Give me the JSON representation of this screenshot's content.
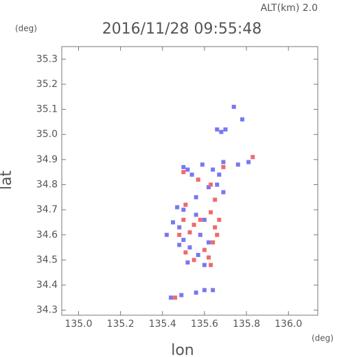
{
  "chart_data": {
    "type": "scatter",
    "annotation": "ALT(km) 2.0",
    "title": "2016/11/28 09:55:48",
    "y_unit": "(deg)",
    "x_unit": "(deg)",
    "x_label": "lon",
    "y_label": "lat",
    "xlim": [
      134.92,
      136.14
    ],
    "ylim": [
      34.28,
      35.35
    ],
    "xticks": [
      {
        "value": 135.0,
        "label": "135.0"
      },
      135.2,
      135.4,
      135.6,
      135.8,
      {
        "value": 136.0,
        "label": "136.0"
      }
    ],
    "yticks": [
      34.3,
      34.4,
      34.5,
      34.6,
      34.7,
      34.8,
      34.9,
      {
        "value": 35.0,
        "label": "35.0"
      },
      35.1,
      35.2,
      35.3
    ],
    "series": [
      {
        "color": "#7878f0",
        "x": [
          135.74,
          135.78,
          135.66,
          135.68,
          135.7,
          135.5,
          135.52,
          135.54,
          135.59,
          135.64,
          135.69,
          135.76,
          135.81,
          135.62,
          135.66,
          135.69,
          135.47,
          135.5,
          135.56,
          135.6,
          135.45,
          135.48,
          135.42,
          135.5,
          135.58,
          135.62,
          135.53,
          135.57,
          135.6,
          135.52,
          135.48,
          135.44,
          135.49,
          135.56,
          135.6,
          135.64,
          135.56,
          135.67
        ],
        "y": [
          35.11,
          35.06,
          35.02,
          35.01,
          35.02,
          34.87,
          34.86,
          34.84,
          34.88,
          34.86,
          34.89,
          34.88,
          34.89,
          34.79,
          34.8,
          34.77,
          34.71,
          34.7,
          34.68,
          34.66,
          34.65,
          34.63,
          34.6,
          34.58,
          34.6,
          34.57,
          34.55,
          34.52,
          34.48,
          34.49,
          34.56,
          34.35,
          34.36,
          34.37,
          34.38,
          34.38,
          34.75,
          34.84
        ]
      },
      {
        "color": "#f06a6a",
        "x": [
          135.83,
          135.5,
          135.57,
          135.63,
          135.65,
          135.51,
          135.55,
          135.63,
          135.65,
          135.66,
          135.64,
          135.6,
          135.62,
          135.63,
          135.55,
          135.51,
          135.48,
          135.53,
          135.58,
          135.5,
          135.67,
          135.46,
          135.69
        ],
        "y": [
          34.91,
          34.85,
          34.82,
          34.8,
          34.74,
          34.72,
          34.64,
          34.69,
          34.63,
          34.6,
          34.57,
          34.54,
          34.51,
          34.48,
          34.5,
          34.53,
          34.6,
          34.61,
          34.66,
          34.66,
          34.66,
          34.35,
          34.87
        ]
      }
    ]
  }
}
